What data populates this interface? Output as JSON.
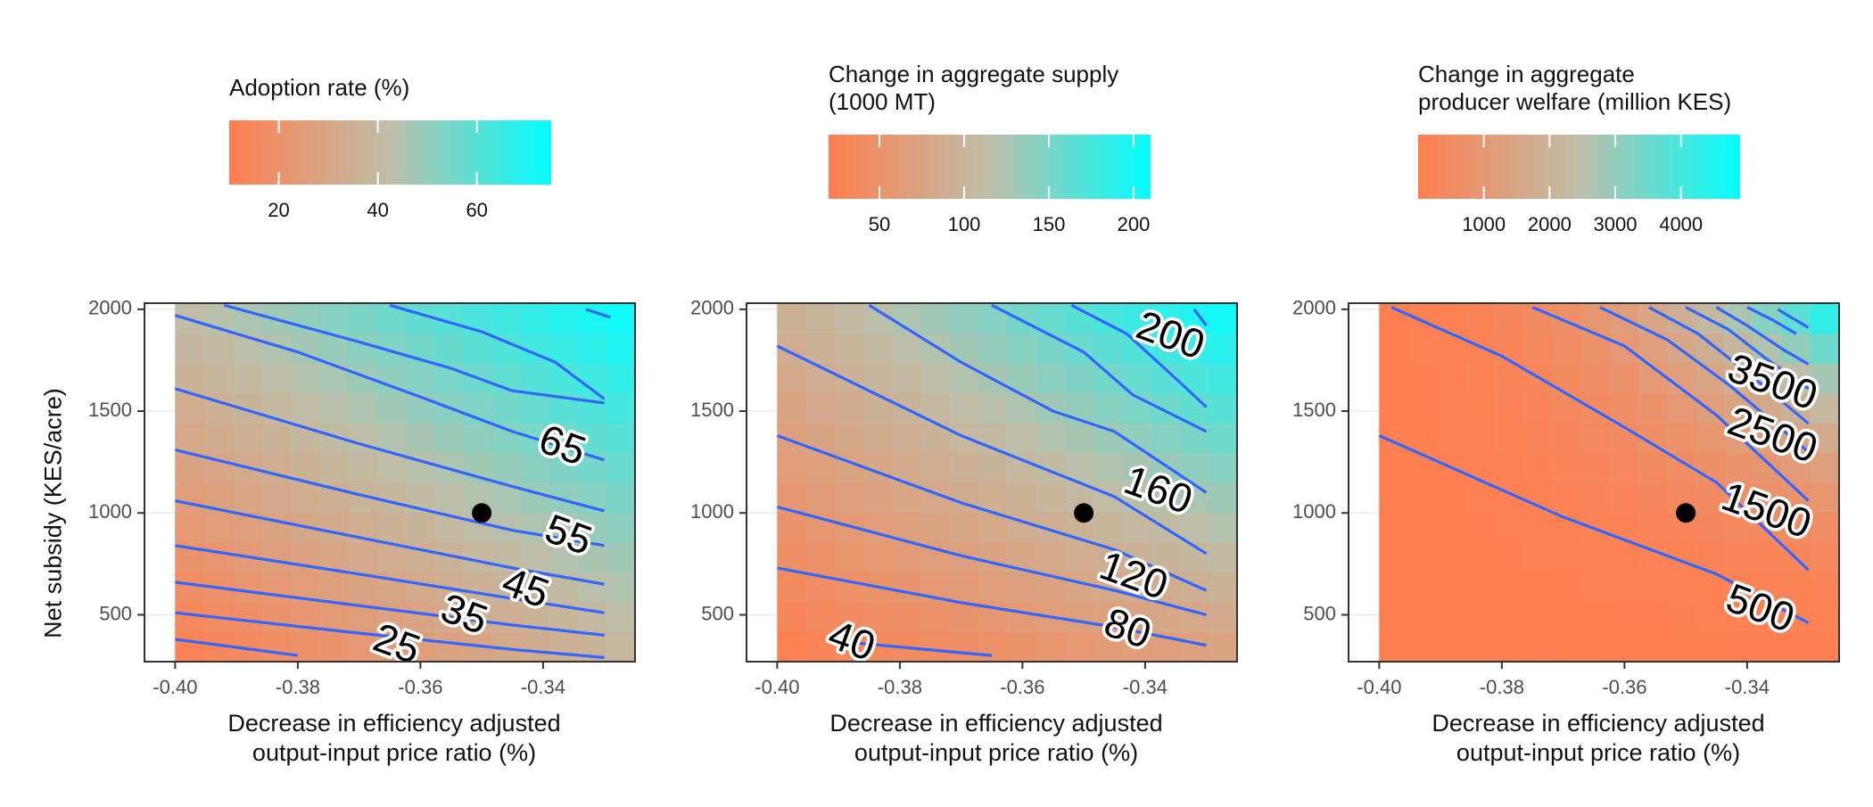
{
  "colors": {
    "low": "#FF7F50",
    "mid": "#BEBEA8",
    "high": "#00FFFF",
    "contour": "#3366FF",
    "marker": "#000000"
  },
  "chart_data": [
    {
      "type": "heatmap",
      "legend_title": "Adoption rate (%)",
      "legend_ticks": [
        20,
        40,
        60
      ],
      "legend_range": [
        10,
        75
      ],
      "xlabel": "Decrease in efficiency adjusted\noutput-input price ratio (%)",
      "ylabel": "Net subsidy (KES/acre)",
      "xticks": [
        "-0.40",
        "-0.38",
        "-0.36",
        "-0.34"
      ],
      "yticks": [
        "500",
        "1000",
        "1500",
        "2000"
      ],
      "xlim": [
        -0.405,
        -0.325
      ],
      "ylim": [
        270,
        2030
      ],
      "grid": true,
      "point": {
        "x": -0.35,
        "y": 1000
      },
      "contours": [
        {
          "level": 25,
          "label": "25",
          "points": [
            [
              -0.4,
              380
            ],
            [
              -0.38,
              300
            ]
          ],
          "label_at": [
            -0.364,
            345
          ]
        },
        {
          "level": 30,
          "label": "",
          "points": [
            [
              -0.4,
              510
            ],
            [
              -0.37,
              410
            ],
            [
              -0.345,
              330
            ],
            [
              -0.33,
              290
            ]
          ]
        },
        {
          "level": 35,
          "label": "35",
          "points": [
            [
              -0.4,
              660
            ],
            [
              -0.37,
              545
            ],
            [
              -0.345,
              450
            ],
            [
              -0.33,
              400
            ]
          ],
          "label_at": [
            -0.353,
            490
          ]
        },
        {
          "level": 40,
          "label": "",
          "points": [
            [
              -0.4,
              840
            ],
            [
              -0.37,
              700
            ],
            [
              -0.345,
              580
            ],
            [
              -0.33,
              510
            ]
          ]
        },
        {
          "level": 45,
          "label": "45",
          "points": [
            [
              -0.4,
              1060
            ],
            [
              -0.37,
              880
            ],
            [
              -0.345,
              730
            ],
            [
              -0.33,
              650
            ]
          ],
          "label_at": [
            -0.343,
            620
          ]
        },
        {
          "level": 50,
          "label": "",
          "points": [
            [
              -0.4,
              1310
            ],
            [
              -0.37,
              1090
            ],
            [
              -0.345,
              915
            ],
            [
              -0.33,
              840
            ]
          ]
        },
        {
          "level": 55,
          "label": "55",
          "points": [
            [
              -0.4,
              1610
            ],
            [
              -0.37,
              1340
            ],
            [
              -0.345,
              1130
            ],
            [
              -0.33,
              1010
            ]
          ],
          "label_at": [
            -0.336,
            880
          ]
        },
        {
          "level": 60,
          "label": "",
          "points": [
            [
              -0.4,
              1970
            ],
            [
              -0.38,
              1790
            ],
            [
              -0.36,
              1570
            ],
            [
              -0.345,
              1400
            ],
            [
              -0.33,
              1260
            ]
          ]
        },
        {
          "level": 65,
          "label": "65",
          "points": [
            [
              -0.392,
              2020
            ],
            [
              -0.37,
              1840
            ],
            [
              -0.355,
              1710
            ],
            [
              -0.345,
              1600
            ],
            [
              -0.33,
              1540
            ]
          ],
          "label_at": [
            -0.337,
            1320
          ]
        },
        {
          "level": 70,
          "label": "",
          "points": [
            [
              -0.365,
              2020
            ],
            [
              -0.35,
              1890
            ],
            [
              -0.338,
              1740
            ],
            [
              -0.33,
              1560
            ]
          ]
        },
        {
          "level": 75,
          "label": "",
          "points": [
            [
              -0.333,
              2000
            ],
            [
              -0.329,
              1960
            ]
          ]
        }
      ],
      "fill_corners": {
        "bl": 10,
        "br": 38,
        "tl": 42,
        "tr": 75
      }
    },
    {
      "type": "heatmap",
      "legend_title": "Change in aggregate supply\n(1000 MT)",
      "legend_ticks": [
        50,
        100,
        150,
        200
      ],
      "legend_range": [
        20,
        210
      ],
      "xlabel": "Decrease in efficiency adjusted\noutput-input price ratio (%)",
      "ylabel": "",
      "xticks": [
        "-0.40",
        "-0.38",
        "-0.36",
        "-0.34"
      ],
      "yticks": [
        "500",
        "1000",
        "1500",
        "2000"
      ],
      "xlim": [
        -0.405,
        -0.325
      ],
      "ylim": [
        270,
        2030
      ],
      "grid": true,
      "point": {
        "x": -0.35,
        "y": 1000
      },
      "contours": [
        {
          "level": 40,
          "label": "40",
          "points": [
            [
              -0.39,
              370
            ],
            [
              -0.365,
              300
            ]
          ],
          "label_at": [
            -0.388,
            360
          ]
        },
        {
          "level": 60,
          "label": "",
          "points": [
            [
              -0.4,
              730
            ],
            [
              -0.37,
              560
            ],
            [
              -0.345,
              440
            ],
            [
              -0.33,
              350
            ]
          ]
        },
        {
          "level": 80,
          "label": "80",
          "points": [
            [
              -0.4,
              1030
            ],
            [
              -0.37,
              790
            ],
            [
              -0.345,
              620
            ],
            [
              -0.33,
              500
            ]
          ],
          "label_at": [
            -0.343,
            420
          ]
        },
        {
          "level": 100,
          "label": "",
          "points": [
            [
              -0.4,
              1380
            ],
            [
              -0.37,
              1050
            ],
            [
              -0.345,
              820
            ],
            [
              -0.33,
              620
            ]
          ]
        },
        {
          "level": 120,
          "label": "120",
          "points": [
            [
              -0.4,
              1820
            ],
            [
              -0.37,
              1380
            ],
            [
              -0.345,
              1080
            ],
            [
              -0.33,
              800
            ]
          ],
          "label_at": [
            -0.342,
            680
          ]
        },
        {
          "level": 140,
          "label": "",
          "points": [
            [
              -0.385,
              2020
            ],
            [
              -0.37,
              1740
            ],
            [
              -0.355,
              1500
            ],
            [
              -0.345,
              1400
            ],
            [
              -0.33,
              1100
            ]
          ]
        },
        {
          "level": 160,
          "label": "160",
          "points": [
            [
              -0.365,
              2020
            ],
            [
              -0.35,
              1790
            ],
            [
              -0.342,
              1580
            ],
            [
              -0.33,
              1400
            ]
          ],
          "label_at": [
            -0.338,
            1100
          ]
        },
        {
          "level": 180,
          "label": "",
          "points": [
            [
              -0.352,
              2020
            ],
            [
              -0.343,
              1880
            ],
            [
              -0.335,
              1660
            ],
            [
              -0.33,
              1520
            ]
          ]
        },
        {
          "level": 200,
          "label": "200",
          "points": [
            [
              -0.332,
              2000
            ],
            [
              -0.33,
              1920
            ]
          ],
          "label_at": [
            -0.336,
            1860
          ]
        }
      ],
      "fill_corners": {
        "bl": 20,
        "br": 70,
        "tl": 95,
        "tr": 210
      }
    },
    {
      "type": "heatmap",
      "legend_title": "Change in aggregate\nproducer welfare (million KES)",
      "legend_ticks": [
        1000,
        2000,
        3000,
        4000
      ],
      "legend_range": [
        0,
        4900
      ],
      "xlabel": "Decrease in efficiency adjusted\noutput-input price ratio (%)",
      "ylabel": "",
      "xticks": [
        "-0.40",
        "-0.38",
        "-0.36",
        "-0.34"
      ],
      "yticks": [
        "500",
        "1000",
        "1500",
        "2000"
      ],
      "xlim": [
        -0.405,
        -0.325
      ],
      "ylim": [
        270,
        2030
      ],
      "grid": true,
      "point": {
        "x": -0.35,
        "y": 1000
      },
      "contours": [
        {
          "level": 500,
          "label": "500",
          "points": [
            [
              -0.4,
              1380
            ],
            [
              -0.37,
              980
            ],
            [
              -0.345,
              700
            ],
            [
              -0.33,
              460
            ]
          ],
          "label_at": [
            -0.338,
            520
          ]
        },
        {
          "level": 1000,
          "label": "",
          "points": [
            [
              -0.398,
              2010
            ],
            [
              -0.38,
              1770
            ],
            [
              -0.36,
              1420
            ],
            [
              -0.345,
              1150
            ],
            [
              -0.33,
              720
            ]
          ]
        },
        {
          "level": 1500,
          "label": "1500",
          "points": [
            [
              -0.375,
              2010
            ],
            [
              -0.36,
              1820
            ],
            [
              -0.345,
              1480
            ],
            [
              -0.33,
              1060
            ]
          ],
          "label_at": [
            -0.337,
            1000
          ]
        },
        {
          "level": 2000,
          "label": "",
          "points": [
            [
              -0.364,
              2010
            ],
            [
              -0.353,
              1850
            ],
            [
              -0.343,
              1630
            ],
            [
              -0.33,
              1300
            ]
          ]
        },
        {
          "level": 2500,
          "label": "2500",
          "points": [
            [
              -0.356,
              2010
            ],
            [
              -0.348,
              1880
            ],
            [
              -0.34,
              1690
            ],
            [
              -0.33,
              1440
            ]
          ],
          "label_at": [
            -0.336,
            1370
          ]
        },
        {
          "level": 3000,
          "label": "",
          "points": [
            [
              -0.35,
              2010
            ],
            [
              -0.343,
              1900
            ],
            [
              -0.337,
              1760
            ],
            [
              -0.33,
              1610
            ]
          ]
        },
        {
          "level": 3500,
          "label": "3500",
          "points": [
            [
              -0.345,
              2010
            ],
            [
              -0.34,
              1920
            ],
            [
              -0.334,
              1800
            ],
            [
              -0.33,
              1730
            ]
          ],
          "label_at": [
            -0.336,
            1630
          ]
        },
        {
          "level": 4000,
          "label": "",
          "points": [
            [
              -0.34,
              2010
            ],
            [
              -0.336,
              1950
            ],
            [
              -0.332,
              1880
            ]
          ]
        },
        {
          "level": 4500,
          "label": "",
          "points": [
            [
              -0.335,
              2000
            ],
            [
              -0.33,
              1910
            ]
          ]
        }
      ],
      "fill_corners": {
        "bl": 0,
        "br": 250,
        "tl": 200,
        "tr": 4900
      }
    }
  ]
}
